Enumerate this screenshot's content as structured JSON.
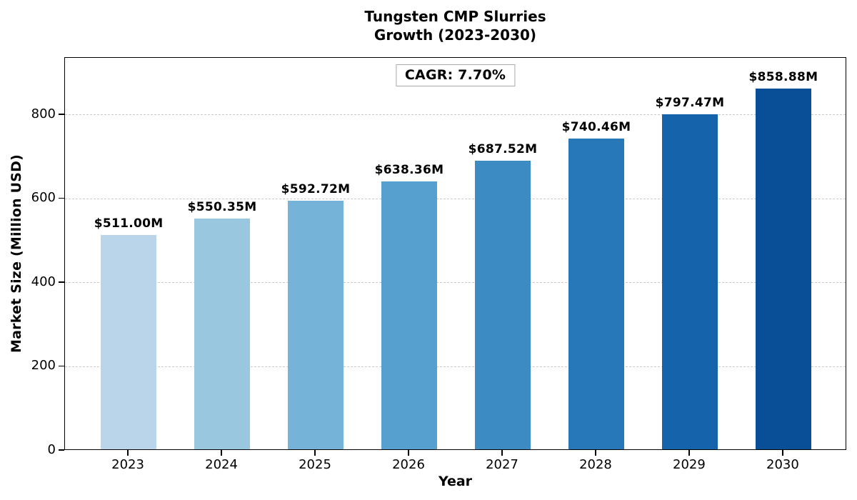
{
  "header": {
    "title_line1": "Tungsten CMP Slurries",
    "title_line2": "Growth (2023-2030)"
  },
  "chart_data": {
    "type": "bar",
    "title": "Tungsten CMP Slurries Growth (2023-2030)",
    "categories": [
      "2023",
      "2024",
      "2025",
      "2026",
      "2027",
      "2028",
      "2029",
      "2030"
    ],
    "values": [
      511.0,
      550.35,
      592.72,
      638.36,
      687.52,
      740.46,
      797.47,
      858.88
    ],
    "bar_labels": [
      "$511.00M",
      "$550.35M",
      "$592.72M",
      "$638.36M",
      "$687.52M",
      "$740.46M",
      "$797.47M",
      "$858.88M"
    ],
    "bar_colors": [
      "#bad5ea",
      "#9ac7e0",
      "#75b4d8",
      "#55a0ce",
      "#3c8cc3",
      "#2678b8",
      "#1563aa",
      "#094f97"
    ],
    "annotation": "CAGR: 7.70%",
    "xlabel": "Year",
    "ylabel": "Market Size (Million USD)",
    "yticks": [
      0,
      200,
      400,
      600,
      800
    ],
    "ylim": [
      0,
      936
    ],
    "xlim": [
      -0.68,
      7.68
    ],
    "bar_width_units": 0.6,
    "grid": "horizontal-dashed",
    "legend": "none"
  }
}
